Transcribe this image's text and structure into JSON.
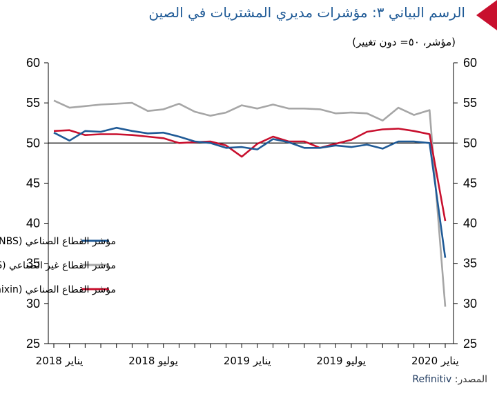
{
  "header": {
    "title": "الرسم البياني ٣: مؤشرات مديري المشتريات في الصين",
    "subtitle": "(مؤشر، ٥٠= دون تغيير)"
  },
  "source": {
    "label": "المصدر:",
    "name": "Refinitiv"
  },
  "colors": {
    "accent": "#c8102e",
    "title": "#1f5a96"
  },
  "chart_data": {
    "type": "line",
    "ylim": [
      25,
      60
    ],
    "yticks": [
      "25",
      "30",
      "35",
      "40",
      "45",
      "50",
      "55",
      "60"
    ],
    "reference_line": 50,
    "x_start": "2018-01",
    "x_end": "2020-02",
    "x_labels": [
      {
        "month": "2018-01",
        "text": "يناير 2018"
      },
      {
        "month": "2018-07",
        "text": "يوليو 2018"
      },
      {
        "month": "2019-01",
        "text": "يناير 2019"
      },
      {
        "month": "2019-07",
        "text": "يوليو 2019"
      },
      {
        "month": "2020-01",
        "text": "يناير 2020"
      }
    ],
    "x": [
      "2018-01",
      "2018-02",
      "2018-03",
      "2018-04",
      "2018-05",
      "2018-06",
      "2018-07",
      "2018-08",
      "2018-09",
      "2018-10",
      "2018-11",
      "2018-12",
      "2019-01",
      "2019-02",
      "2019-03",
      "2019-04",
      "2019-05",
      "2019-06",
      "2019-07",
      "2019-08",
      "2019-09",
      "2019-10",
      "2019-11",
      "2019-12",
      "2020-01",
      "2020-02"
    ],
    "series": [
      {
        "name": "مؤشر القطاع الصناعي (NBS)",
        "color": "#1f5a96",
        "values": [
          51.3,
          50.3,
          51.5,
          51.4,
          51.9,
          51.5,
          51.2,
          51.3,
          50.8,
          50.2,
          50.0,
          49.4,
          49.5,
          49.2,
          50.5,
          50.1,
          49.4,
          49.4,
          49.7,
          49.5,
          49.8,
          49.3,
          50.2,
          50.2,
          50.0,
          35.7
        ]
      },
      {
        "name": "مؤشر القطاع غير الصناعي (NBS)",
        "color": "#a6a6a6",
        "values": [
          55.3,
          54.4,
          54.6,
          54.8,
          54.9,
          55.0,
          54.0,
          54.2,
          54.9,
          53.9,
          53.4,
          53.8,
          54.7,
          54.3,
          54.8,
          54.3,
          54.3,
          54.2,
          53.7,
          53.8,
          53.7,
          52.8,
          54.4,
          53.5,
          54.1,
          29.6
        ]
      },
      {
        "name": "مؤشر القطاع الصناعي (Caixin)",
        "color": "#c8102e",
        "values": [
          51.5,
          51.6,
          51.0,
          51.1,
          51.1,
          51.0,
          50.8,
          50.6,
          50.0,
          50.1,
          50.2,
          49.7,
          48.3,
          49.9,
          50.8,
          50.2,
          50.2,
          49.4,
          49.9,
          50.4,
          51.4,
          51.7,
          51.8,
          51.5,
          51.1,
          40.3
        ]
      }
    ]
  }
}
